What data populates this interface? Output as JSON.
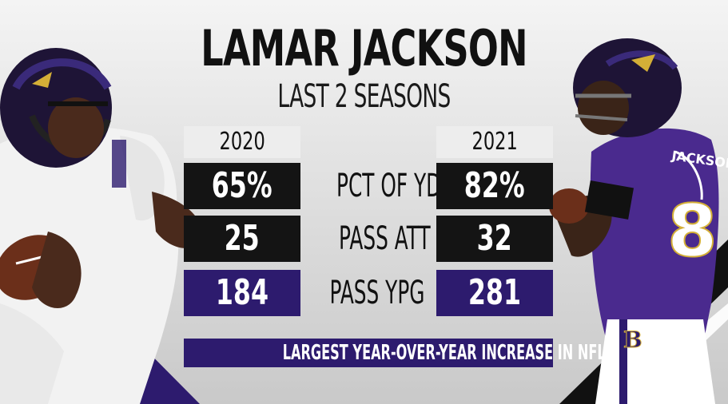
{
  "header": {
    "title": "LAMAR JACKSON",
    "subtitle": "LAST 2 SEASONS"
  },
  "columns": [
    "2020",
    "2021"
  ],
  "rows": [
    {
      "label": "PCT OF YDS",
      "values": [
        "65%",
        "82%"
      ],
      "style": "dark"
    },
    {
      "label": "PASS ATT PG",
      "values": [
        "25",
        "32"
      ],
      "style": "dark"
    },
    {
      "label": "PASS YPG",
      "values": [
        "184",
        "281"
      ],
      "style": "purple"
    }
  ],
  "footer": {
    "banner": "LARGEST YEAR-OVER-YEAR INCREASE IN NFL"
  },
  "colors": {
    "purple": "#2d1b6e",
    "dark": "#141414",
    "year_bg": "#ededed"
  },
  "images": {
    "left_player": "player-white-jersey",
    "right_player": "player-purple-jersey-8"
  }
}
